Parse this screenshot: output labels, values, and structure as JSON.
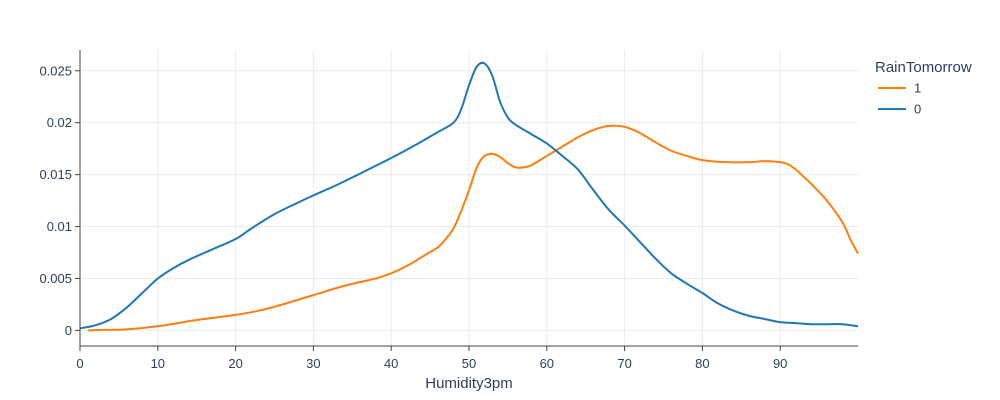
{
  "chart_data": {
    "type": "line",
    "xlabel": "Humidity3pm",
    "ylabel": "",
    "xlim": [
      0,
      100
    ],
    "ylim": [
      -0.0015,
      0.027
    ],
    "x_ticks": [
      0,
      10,
      20,
      30,
      40,
      50,
      60,
      70,
      80,
      90
    ],
    "y_ticks": [
      0,
      0.005,
      0.01,
      0.015,
      0.02,
      0.025
    ],
    "x_tick_labels": [
      "0",
      "10",
      "20",
      "30",
      "40",
      "50",
      "60",
      "70",
      "80",
      "90"
    ],
    "y_tick_labels": [
      "0",
      "0.005",
      "0.01",
      "0.015",
      "0.02",
      "0.025"
    ],
    "grid": true,
    "legend": {
      "title": "RainTomorrow",
      "placement": "top-right",
      "entries": [
        "1",
        "0"
      ]
    },
    "series": [
      {
        "name": "1",
        "color": "#ff7f0e",
        "x": [
          1,
          3,
          6,
          10,
          15,
          20,
          23,
          26,
          30,
          34,
          38,
          40,
          42,
          44,
          46,
          47,
          48,
          49,
          50,
          51,
          52,
          53,
          54,
          55,
          56,
          57,
          58,
          60,
          62,
          64,
          66,
          68,
          70,
          72,
          74,
          76,
          78,
          80,
          83,
          86,
          88,
          90,
          91,
          92,
          93,
          94,
          96,
          98,
          99,
          100
        ],
        "y": [
          0.0,
          5e-05,
          0.0001,
          0.0004,
          0.001,
          0.0015,
          0.0019,
          0.0025,
          0.0034,
          0.0043,
          0.005,
          0.0055,
          0.0062,
          0.0071,
          0.008,
          0.0088,
          0.0098,
          0.0115,
          0.0135,
          0.0157,
          0.0168,
          0.017,
          0.0167,
          0.0161,
          0.0157,
          0.0157,
          0.0159,
          0.0168,
          0.0177,
          0.0186,
          0.0193,
          0.0197,
          0.0196,
          0.019,
          0.0181,
          0.0173,
          0.0168,
          0.0164,
          0.0162,
          0.0162,
          0.0163,
          0.0162,
          0.016,
          0.0155,
          0.0148,
          0.0141,
          0.0125,
          0.0104,
          0.0088,
          0.0074
        ]
      },
      {
        "name": "0",
        "color": "#1f77b4",
        "x": [
          0,
          2,
          4,
          6,
          8,
          10,
          12,
          14,
          17,
          20,
          22,
          25,
          28,
          30,
          33,
          36,
          40,
          43,
          46,
          48,
          49,
          50,
          51,
          52,
          53,
          54,
          55,
          56,
          58,
          60,
          62,
          64,
          66,
          68,
          70,
          72,
          74,
          76,
          78,
          80,
          82,
          84,
          86,
          88,
          90,
          92,
          94,
          96,
          98,
          100
        ],
        "y": [
          0.0002,
          0.0005,
          0.0011,
          0.0022,
          0.0036,
          0.005,
          0.006,
          0.0068,
          0.0078,
          0.0088,
          0.0098,
          0.0112,
          0.0123,
          0.013,
          0.014,
          0.0151,
          0.0166,
          0.0178,
          0.0191,
          0.02,
          0.0213,
          0.0236,
          0.0254,
          0.0257,
          0.0245,
          0.022,
          0.0205,
          0.0198,
          0.0189,
          0.018,
          0.0168,
          0.0155,
          0.0135,
          0.0116,
          0.0101,
          0.0085,
          0.0069,
          0.0055,
          0.0045,
          0.0036,
          0.0026,
          0.0019,
          0.0014,
          0.0011,
          0.0008,
          0.0007,
          0.0006,
          0.0006,
          0.0006,
          0.0004
        ]
      }
    ]
  }
}
